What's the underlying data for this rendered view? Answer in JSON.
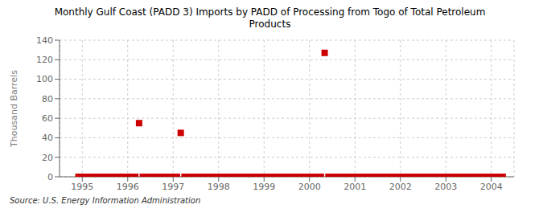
{
  "chart_data": {
    "type": "scatter",
    "title": "Monthly Gulf Coast (PADD 3) Imports by PADD of Processing from Togo of Total Petroleum\nProducts",
    "y_label": "Thousand Barrels",
    "source": "Source: U.S. Energy Information Administration",
    "color": "#cc0000",
    "marker": "square",
    "grid": true,
    "xlim": [
      1994.5,
      2004.5
    ],
    "ylim": [
      0,
      140
    ],
    "xticks": [
      1995,
      1996,
      1997,
      1998,
      1999,
      2000,
      2001,
      2002,
      2003,
      2004
    ],
    "yticks": [
      0,
      20,
      40,
      60,
      80,
      100,
      120,
      140
    ],
    "x": [
      1994.917,
      1995.0,
      1995.083,
      1995.167,
      1995.25,
      1995.333,
      1995.417,
      1995.5,
      1995.583,
      1995.667,
      1995.75,
      1995.833,
      1995.917,
      1996.0,
      1996.083,
      1996.167,
      1996.25,
      1996.333,
      1996.417,
      1996.5,
      1996.583,
      1996.667,
      1996.75,
      1996.833,
      1996.917,
      1997.0,
      1997.083,
      1997.167,
      1997.25,
      1997.333,
      1997.417,
      1997.5,
      1997.583,
      1997.667,
      1997.75,
      1997.833,
      1997.917,
      1998.0,
      1998.083,
      1998.167,
      1998.25,
      1998.333,
      1998.417,
      1998.5,
      1998.583,
      1998.667,
      1998.75,
      1998.833,
      1998.917,
      1999.0,
      1999.083,
      1999.167,
      1999.25,
      1999.333,
      1999.417,
      1999.5,
      1999.583,
      1999.667,
      1999.75,
      1999.833,
      1999.917,
      2000.0,
      2000.083,
      2000.167,
      2000.25,
      2000.333,
      2000.417,
      2000.5,
      2000.583,
      2000.667,
      2000.75,
      2000.833,
      2000.917,
      2001.0,
      2001.083,
      2001.167,
      2001.25,
      2001.333,
      2001.417,
      2001.5,
      2001.583,
      2001.667,
      2001.75,
      2001.833,
      2001.917,
      2002.0,
      2002.083,
      2002.167,
      2002.25,
      2002.333,
      2002.417,
      2002.5,
      2002.583,
      2002.667,
      2002.75,
      2002.833,
      2002.917,
      2003.0,
      2003.083,
      2003.167,
      2003.25,
      2003.333,
      2003.417,
      2003.5,
      2003.583,
      2003.667,
      2003.75,
      2003.833,
      2003.917,
      2004.0,
      2004.083,
      2004.167,
      2004.25
    ],
    "values": [
      0,
      0,
      0,
      0,
      0,
      0,
      0,
      0,
      0,
      0,
      0,
      0,
      0,
      0,
      0,
      0,
      55,
      0,
      0,
      0,
      0,
      0,
      0,
      0,
      0,
      0,
      0,
      45,
      0,
      0,
      0,
      0,
      0,
      0,
      0,
      0,
      0,
      0,
      0,
      0,
      0,
      0,
      0,
      0,
      0,
      0,
      0,
      0,
      0,
      0,
      0,
      0,
      0,
      0,
      0,
      0,
      0,
      0,
      0,
      0,
      0,
      0,
      0,
      0,
      0,
      127,
      0,
      0,
      0,
      0,
      0,
      0,
      0,
      0,
      0,
      0,
      0,
      0,
      0,
      0,
      0,
      0,
      0,
      0,
      0,
      0,
      0,
      0,
      0,
      0,
      0,
      0,
      0,
      0,
      0,
      0,
      0,
      0,
      0,
      0,
      0,
      0,
      0,
      0,
      0,
      0,
      0,
      0,
      0,
      0,
      0,
      0,
      0
    ]
  }
}
